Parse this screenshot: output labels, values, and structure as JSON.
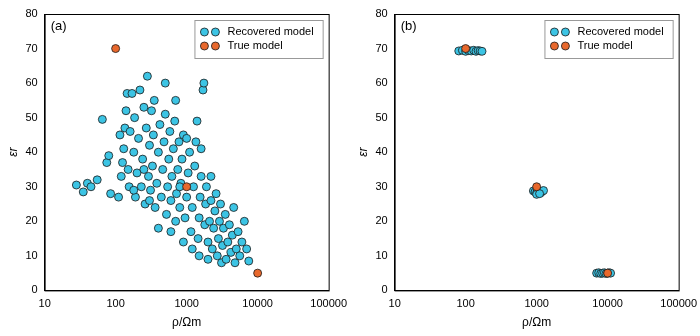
{
  "chart_data": [
    {
      "type": "scatter",
      "title": "(a)",
      "x_label": "ρ/Ωm",
      "y_label": "εr",
      "log": "x",
      "grid": false,
      "legend": "upper right",
      "xlim": [
        10,
        100000
      ],
      "xticks": [
        10,
        100,
        1000,
        10000,
        100000
      ],
      "ylim": [
        0,
        80
      ],
      "yticks": [
        0,
        10,
        20,
        30,
        40,
        50,
        60,
        70,
        80
      ],
      "series": [
        {
          "name": "Recovered model",
          "color": "#3cc4e4",
          "marker": "circle",
          "x": [
            28,
            35,
            40,
            45,
            55,
            65,
            75,
            80,
            85,
            110,
            115,
            120,
            125,
            130,
            135,
            140,
            145,
            150,
            155,
            160,
            170,
            180,
            185,
            190,
            200,
            210,
            220,
            230,
            240,
            250,
            260,
            270,
            280,
            290,
            300,
            310,
            320,
            330,
            340,
            350,
            360,
            380,
            400,
            420,
            440,
            460,
            480,
            500,
            520,
            540,
            560,
            580,
            600,
            620,
            650,
            680,
            700,
            720,
            750,
            780,
            800,
            830,
            860,
            900,
            950,
            1000,
            1050,
            1100,
            1150,
            1200,
            1250,
            1300,
            1350,
            1400,
            1450,
            1500,
            1550,
            1600,
            1700,
            1750,
            1800,
            1850,
            1900,
            2000,
            2100,
            2200,
            2300,
            2400,
            2500,
            2600,
            2700,
            2800,
            2900,
            3000,
            3100,
            3200,
            3300,
            3500,
            3600,
            3800,
            4000,
            4200,
            4400,
            4600,
            4800,
            5000,
            5300,
            5600,
            6000,
            6500,
            7000,
            7500,
            400,
            600,
            900,
            1200,
            800,
            250,
            180,
            1500,
            2000,
            700,
            500,
            1000,
            300,
            1600,
            2200
          ],
          "values": [
            30.5,
            28.5,
            31,
            30,
            32,
            49.5,
            37,
            39,
            28,
            27,
            45,
            33,
            37,
            41,
            47,
            52,
            57,
            35,
            30,
            46,
            57,
            40,
            50,
            27,
            34,
            44,
            58,
            30,
            38,
            53,
            25,
            47,
            62,
            33,
            42,
            29,
            52,
            36,
            45,
            55,
            24,
            31,
            40,
            48,
            27,
            35,
            43,
            51,
            22,
            30,
            38,
            46,
            26,
            33,
            41,
            49,
            20,
            28,
            35,
            43,
            24,
            31,
            38,
            45,
            21,
            27,
            34,
            40,
            17,
            24,
            30,
            36,
            43,
            49,
            15,
            21,
            27,
            33,
            58,
            60,
            19,
            25,
            30,
            14,
            20,
            26,
            12,
            18,
            23,
            28,
            10,
            15,
            20,
            25,
            8,
            13,
            18,
            22,
            9,
            14,
            19,
            11,
            16,
            24,
            8,
            12,
            17,
            10,
            14,
            20,
            12,
            8.5,
            18,
            17,
            14,
            12,
            30,
            35,
            29,
            10,
            9,
            55,
            60,
            44,
            26,
            41,
            33
          ]
        },
        {
          "name": "True model",
          "color": "#e8682c",
          "marker": "circle",
          "x": [
            100,
            1000,
            10000
          ],
          "values": [
            70,
            30,
            5
          ]
        }
      ]
    },
    {
      "type": "scatter",
      "title": "(b)",
      "x_label": "ρ/Ωm",
      "y_label": "εr",
      "log": "x",
      "grid": false,
      "legend": "upper right",
      "xlim": [
        10,
        100000
      ],
      "xticks": [
        10,
        100,
        1000,
        10000,
        100000
      ],
      "ylim": [
        0,
        80
      ],
      "yticks": [
        0,
        10,
        20,
        30,
        40,
        50,
        60,
        70,
        80
      ],
      "series": [
        {
          "name": "Recovered model",
          "color": "#3cc4e4",
          "marker": "circle",
          "x": [
            80,
            90,
            100,
            110,
            120,
            130,
            140,
            150,
            160,
            170,
            900,
            950,
            1000,
            1050,
            1100,
            1150,
            1200,
            1250,
            1000,
            1100,
            7000,
            7500,
            8000,
            8500,
            9000,
            9500,
            10000,
            10500,
            11000
          ],
          "values": [
            69.3,
            69.5,
            69.2,
            69.4,
            69.3,
            69.5,
            69.2,
            69.4,
            69.3,
            69.2,
            28.8,
            28.5,
            28.2,
            28.9,
            28.6,
            28.3,
            28.7,
            28.9,
            27.8,
            28.0,
            5.0,
            5.1,
            4.9,
            5.0,
            5.1,
            4.9,
            5.0,
            5.1,
            5.0
          ]
        },
        {
          "name": "True model",
          "color": "#e8682c",
          "marker": "circle",
          "x": [
            100,
            1000,
            10000
          ],
          "values": [
            70,
            30,
            5
          ]
        }
      ]
    }
  ]
}
